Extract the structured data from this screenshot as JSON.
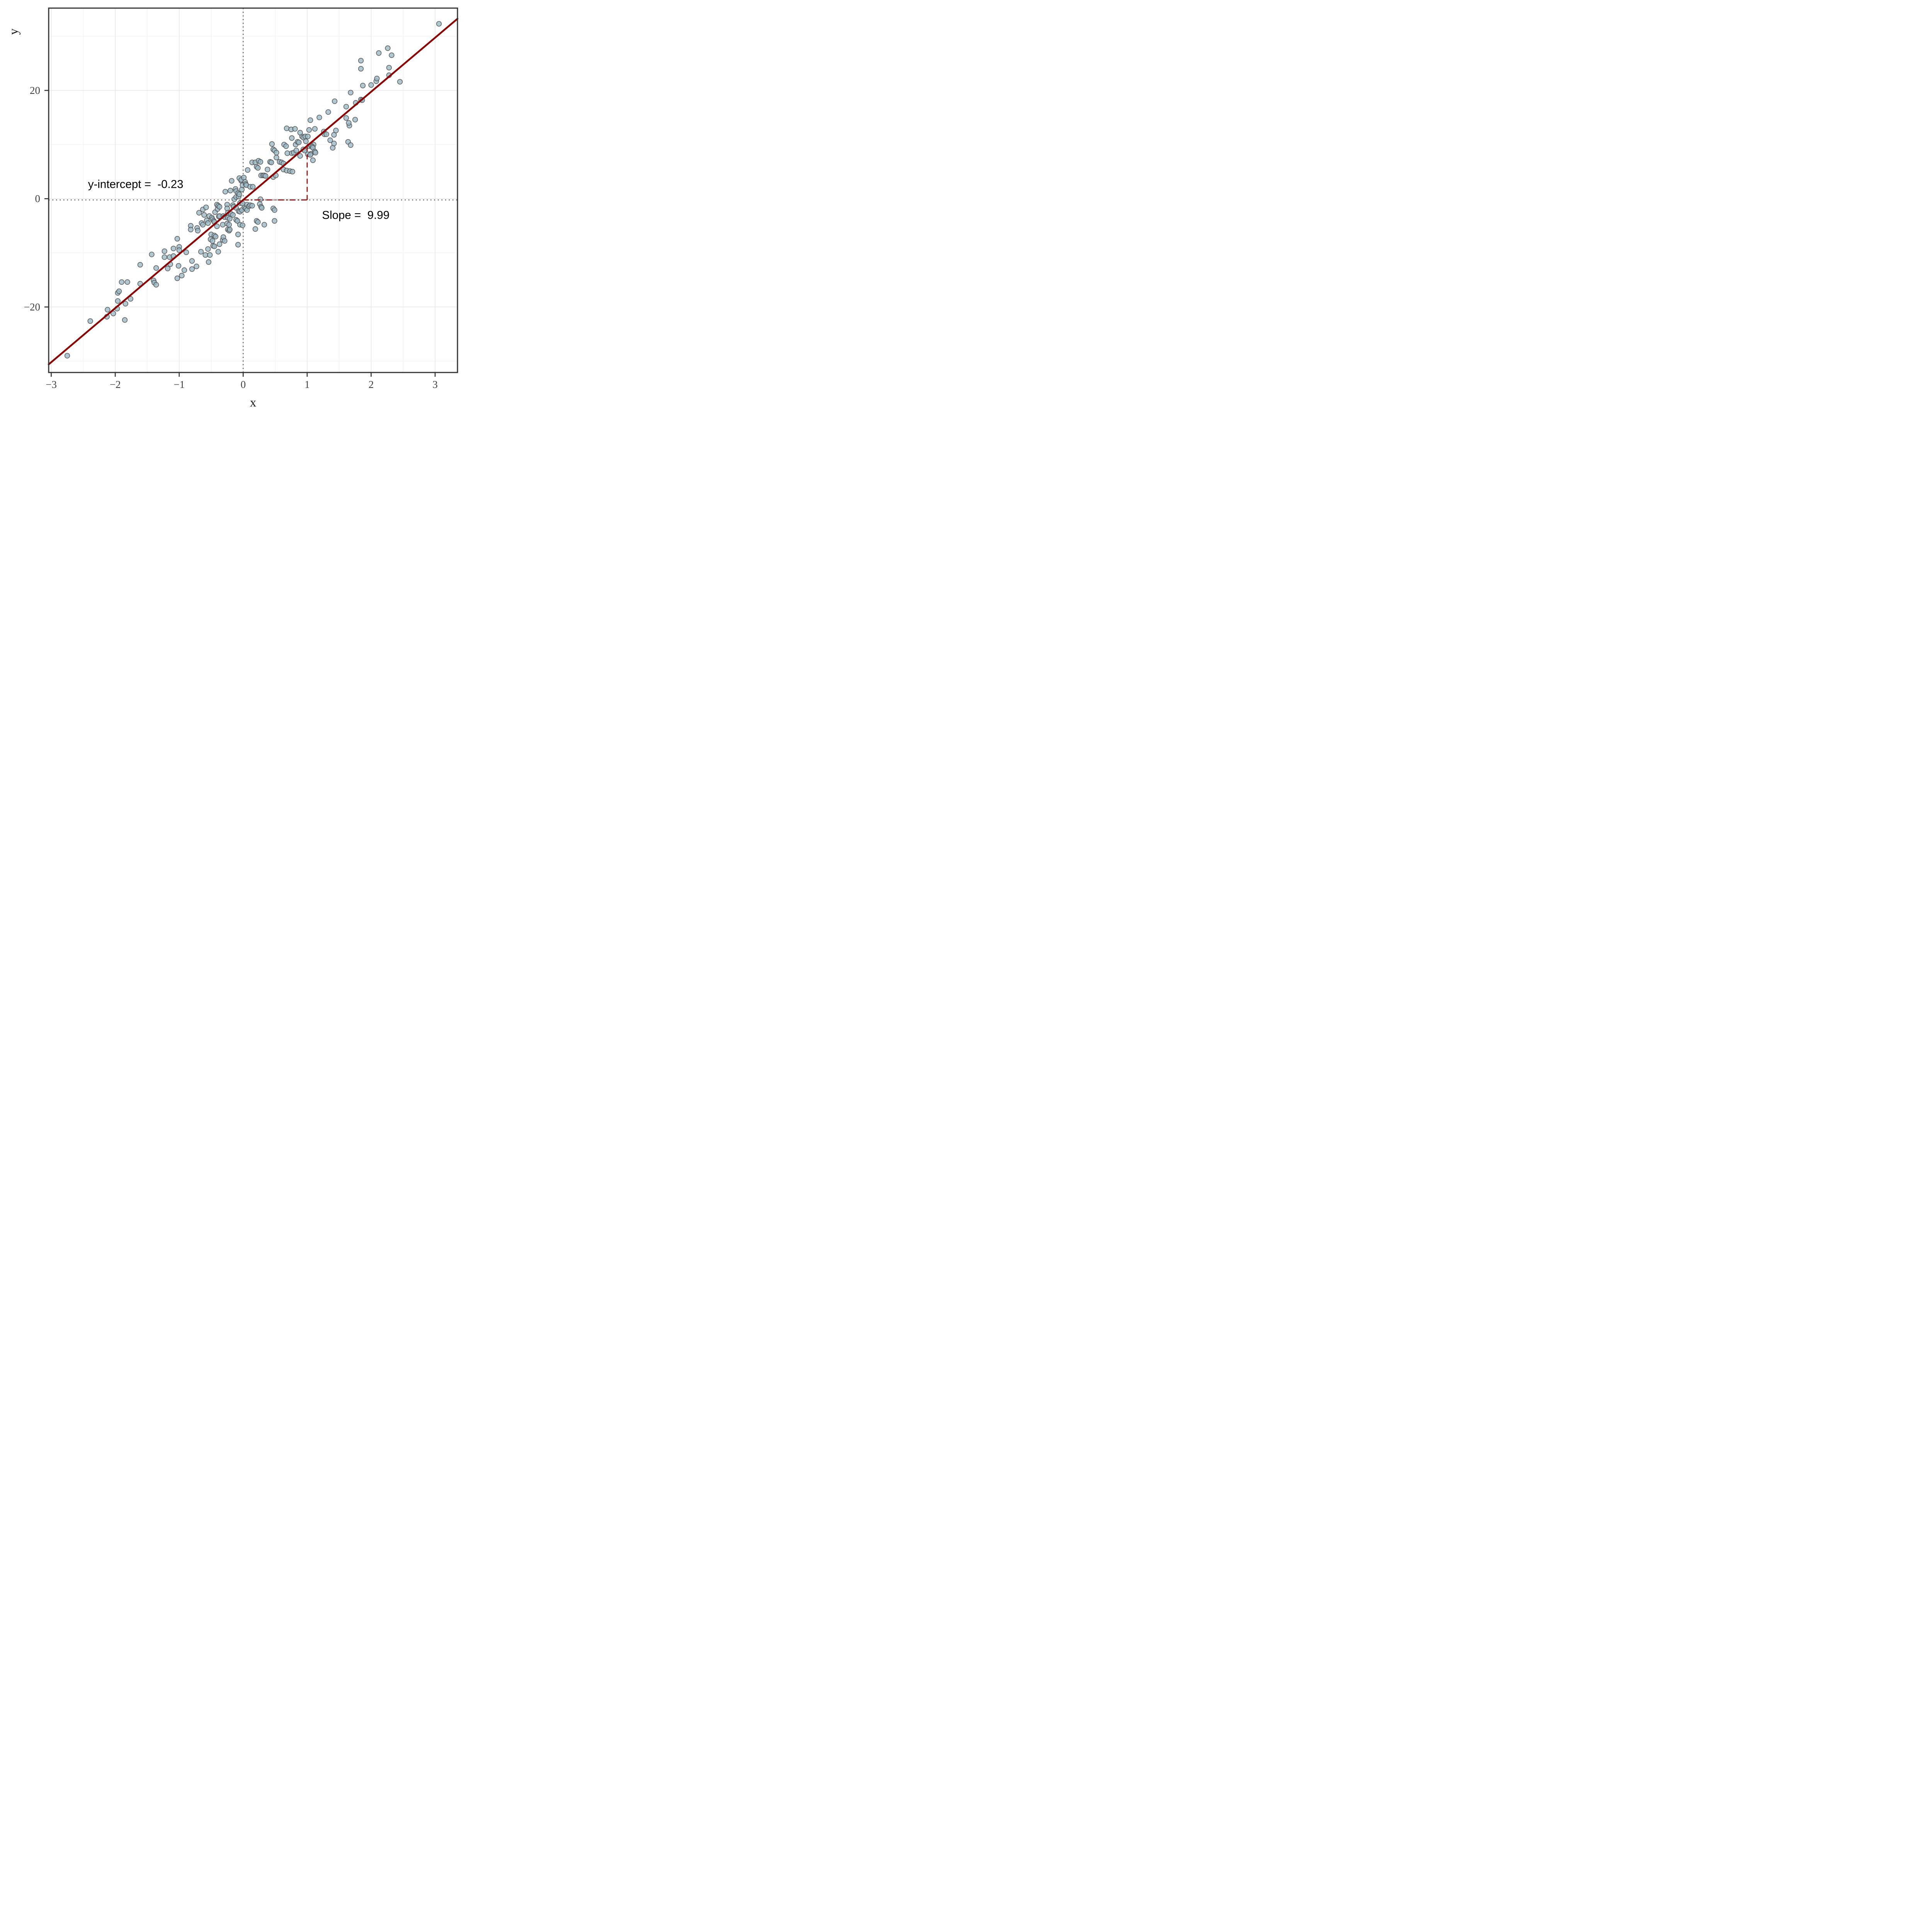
{
  "figure": {
    "xlabel": "x",
    "ylabel": "y"
  },
  "colors": {
    "regression_line": "#8B0000",
    "point_fill": "#9ab9c5",
    "point_stroke": "#4f4f4f",
    "panel_border": "#333333",
    "grid_major": "#e4e4e4",
    "grid_minor": "#efefef",
    "guide_dotted": "#3a3a3a",
    "tick_mark": "#333333",
    "tick_label": "#404040",
    "annotation_text": "#000000",
    "background": "#ffffff"
  },
  "chart_data": {
    "type": "scatter",
    "title": "",
    "xlabel": "x",
    "ylabel": "y",
    "xlim": [
      -3.04,
      3.35
    ],
    "ylim": [
      -32.1,
      35.2
    ],
    "grid": "on",
    "legend": "none",
    "x_ticks": [
      -3,
      -2,
      -1,
      0,
      1,
      2,
      3
    ],
    "x_tick_labels": [
      "−3",
      "−2",
      "−1",
      "0",
      "1",
      "2",
      "3"
    ],
    "y_ticks": [
      20,
      0,
      -20
    ],
    "y_tick_labels": [
      "20",
      "0",
      "−20"
    ],
    "x_minor_ticks": [
      -2.5,
      -1.5,
      -0.5,
      0.5,
      1.5,
      2.5
    ],
    "y_minor_ticks": [
      -30,
      -10,
      10,
      30
    ],
    "regression": {
      "slope": 9.99,
      "intercept": -0.23
    },
    "guide_lines": {
      "vline_x": 0,
      "hline_y": -0.23
    },
    "slope_triangle": {
      "x_from": 0,
      "x_to": 1,
      "base_y": -0.23
    },
    "annotations": [
      {
        "id": "intercept-annotation",
        "text": "y-intercept =  -0.23",
        "x": -1.68,
        "y": 2.7
      },
      {
        "id": "slope-annotation",
        "text": "Slope =  9.99",
        "x": 1.76,
        "y": -3.0
      }
    ],
    "points": [
      [
        -2.75,
        -29.0
      ],
      [
        -2.39,
        -22.6
      ],
      [
        -2.13,
        -21.8
      ],
      [
        -2.12,
        -20.5
      ],
      [
        -2.03,
        -21.2
      ],
      [
        -1.97,
        -20.3
      ],
      [
        -1.96,
        -18.9
      ],
      [
        -1.96,
        -17.4
      ],
      [
        -1.94,
        -17.1
      ],
      [
        -1.9,
        -15.4
      ],
      [
        -1.85,
        -22.4
      ],
      [
        -1.84,
        -19.4
      ],
      [
        -1.81,
        -15.4
      ],
      [
        -1.76,
        -18.5
      ],
      [
        -1.61,
        -15.7
      ],
      [
        -1.61,
        -12.2
      ],
      [
        -1.43,
        -10.3
      ],
      [
        -1.4,
        -15.1
      ],
      [
        -1.39,
        -15.5
      ],
      [
        -1.36,
        -15.9
      ],
      [
        -1.36,
        -12.8
      ],
      [
        -1.23,
        -9.7
      ],
      [
        -1.23,
        -10.8
      ],
      [
        -1.18,
        -12.9
      ],
      [
        -1.15,
        -10.8
      ],
      [
        -1.14,
        -12.1
      ],
      [
        -1.09,
        -9.2
      ],
      [
        -1.09,
        -10.6
      ],
      [
        -1.03,
        -14.7
      ],
      [
        -1.03,
        -7.4
      ],
      [
        -1.01,
        -12.4
      ],
      [
        -1.0,
        -8.9
      ],
      [
        -1.0,
        -9.5
      ],
      [
        -0.96,
        -14.2
      ],
      [
        -0.92,
        -13.2
      ],
      [
        -0.89,
        -9.9
      ],
      [
        -0.8,
        -11.5
      ],
      [
        -0.8,
        -13.0
      ],
      [
        -0.82,
        -5.0
      ],
      [
        -0.82,
        -5.7
      ],
      [
        -0.73,
        -12.5
      ],
      [
        -0.72,
        -5.4
      ],
      [
        -0.71,
        -5.9
      ],
      [
        -0.69,
        -2.6
      ],
      [
        -0.66,
        -9.8
      ],
      [
        -0.65,
        -4.5
      ],
      [
        -0.63,
        -2.0
      ],
      [
        -0.63,
        -4.8
      ],
      [
        -0.61,
        -3.0
      ],
      [
        -0.59,
        -10.4
      ],
      [
        -0.58,
        -1.6
      ],
      [
        -0.57,
        -4.0
      ],
      [
        -0.55,
        -4.5
      ],
      [
        -0.55,
        -9.3
      ],
      [
        -0.53,
        -3.2
      ],
      [
        -0.5,
        -6.6
      ],
      [
        -0.54,
        -11.7
      ],
      [
        -0.52,
        -10.4
      ],
      [
        -0.51,
        -7.5
      ],
      [
        -0.49,
        -3.5
      ],
      [
        -0.48,
        -3.8
      ],
      [
        -0.48,
        -7.8
      ],
      [
        -0.47,
        -8.7
      ],
      [
        -0.46,
        -4.1
      ],
      [
        -0.45,
        -4.3
      ],
      [
        -0.45,
        -6.8
      ],
      [
        -0.45,
        -8.8
      ],
      [
        -0.44,
        -2.5
      ],
      [
        -0.43,
        -7.0
      ],
      [
        -0.41,
        -1.1
      ],
      [
        -0.41,
        -5.1
      ],
      [
        -0.4,
        -1.9
      ],
      [
        -0.39,
        -1.3
      ],
      [
        -0.39,
        -9.8
      ],
      [
        -0.38,
        -3.3
      ],
      [
        -0.37,
        -1.5
      ],
      [
        -0.37,
        -3.2
      ],
      [
        -0.37,
        -8.4
      ],
      [
        -0.32,
        -4.8
      ],
      [
        -0.32,
        -7.6
      ],
      [
        -0.31,
        -3.2
      ],
      [
        -0.31,
        -7.1
      ],
      [
        -0.29,
        -3.4
      ],
      [
        -0.29,
        -7.8
      ],
      [
        -0.25,
        -1.1
      ],
      [
        -0.25,
        -1.8
      ],
      [
        -0.25,
        -4.6
      ],
      [
        -0.24,
        -2.6
      ],
      [
        -0.24,
        -3.5
      ],
      [
        -0.24,
        -5.7
      ],
      [
        -0.22,
        -4.8
      ],
      [
        -0.22,
        -5.9
      ],
      [
        -0.21,
        -3.7
      ],
      [
        -0.21,
        -5.7
      ],
      [
        -0.19,
        -2.8
      ],
      [
        -0.16,
        -1.2
      ],
      [
        -0.16,
        -3.0
      ],
      [
        -0.15,
        -1.5
      ],
      [
        -0.11,
        -1.7
      ],
      [
        -0.11,
        -3.9
      ],
      [
        -0.09,
        -4.1
      ],
      [
        -0.08,
        -6.6
      ],
      [
        -0.08,
        -8.5
      ],
      [
        -0.07,
        -2.3
      ],
      [
        -0.05,
        -0.8
      ],
      [
        -0.05,
        -2.4
      ],
      [
        -0.05,
        -4.8
      ],
      [
        -0.02,
        -2.1
      ],
      [
        -0.01,
        -0.9
      ],
      [
        -0.01,
        -4.9
      ],
      [
        0.02,
        -1.6
      ],
      [
        0.04,
        -1.8
      ],
      [
        0.06,
        -1.1
      ],
      [
        0.06,
        -2.1
      ],
      [
        0.09,
        -1.4
      ],
      [
        0.11,
        -1.2
      ],
      [
        0.14,
        -1.3
      ],
      [
        0.19,
        -5.6
      ],
      [
        0.21,
        -4.1
      ],
      [
        0.23,
        -4.3
      ],
      [
        0.26,
        -1.0
      ],
      [
        0.28,
        -1.5
      ],
      [
        0.29,
        -1.7
      ],
      [
        0.33,
        -4.8
      ],
      [
        0.49,
        -4.1
      ],
      [
        -0.28,
        1.3
      ],
      [
        -0.2,
        1.5
      ],
      [
        -0.18,
        3.3
      ],
      [
        -0.14,
        -0.1
      ],
      [
        -0.12,
        1.8
      ],
      [
        -0.11,
        0.3
      ],
      [
        -0.11,
        1.4
      ],
      [
        -0.08,
        1.0
      ],
      [
        -0.07,
        0.4
      ],
      [
        -0.06,
        0.8
      ],
      [
        -0.06,
        3.8
      ],
      [
        -0.03,
        3.3
      ],
      [
        -0.03,
        3.5
      ],
      [
        -0.02,
        1.7
      ],
      [
        -0.01,
        2.5
      ],
      [
        0.01,
        3.9
      ],
      [
        0.03,
        3.1
      ],
      [
        0.04,
        2.7
      ],
      [
        0.05,
        2.5
      ],
      [
        0.07,
        5.3
      ],
      [
        0.11,
        2.2
      ],
      [
        0.15,
        2.2
      ],
      [
        0.14,
        6.7
      ],
      [
        0.19,
        6.7
      ],
      [
        0.21,
        5.9
      ],
      [
        0.23,
        5.7
      ],
      [
        0.24,
        7.0
      ],
      [
        0.27,
        -0.1
      ],
      [
        0.27,
        6.8
      ],
      [
        0.28,
        4.3
      ],
      [
        0.31,
        4.3
      ],
      [
        0.33,
        4.3
      ],
      [
        0.35,
        4.2
      ],
      [
        0.38,
        5.4
      ],
      [
        0.42,
        6.8
      ],
      [
        0.44,
        6.7
      ],
      [
        0.45,
        10.1
      ],
      [
        0.47,
        -1.8
      ],
      [
        0.47,
        4.0
      ],
      [
        0.47,
        9.1
      ],
      [
        0.49,
        -2.1
      ],
      [
        0.49,
        8.9
      ],
      [
        0.51,
        4.3
      ],
      [
        0.52,
        7.6
      ],
      [
        0.52,
        8.5
      ],
      [
        0.57,
        6.8
      ],
      [
        0.6,
        6.7
      ],
      [
        0.63,
        5.4
      ],
      [
        0.63,
        6.5
      ],
      [
        0.64,
        10.0
      ],
      [
        0.67,
        9.7
      ],
      [
        0.68,
        5.2
      ],
      [
        0.69,
        8.4
      ],
      [
        0.73,
        5.1
      ],
      [
        0.76,
        8.4
      ],
      [
        0.76,
        11.2
      ],
      [
        0.77,
        5.0
      ],
      [
        0.79,
        8.5
      ],
      [
        0.82,
        10.0
      ],
      [
        0.83,
        8.9
      ],
      [
        0.85,
        10.5
      ],
      [
        0.87,
        10.4
      ],
      [
        0.89,
        7.9
      ],
      [
        0.92,
        11.5
      ],
      [
        0.94,
        9.1
      ],
      [
        0.94,
        11.3
      ],
      [
        0.96,
        8.9
      ],
      [
        0.97,
        11.5
      ],
      [
        0.98,
        10.6
      ],
      [
        1.01,
        11.5
      ],
      [
        1.03,
        9.7
      ],
      [
        1.06,
        8.3
      ],
      [
        1.1,
        10.0
      ],
      [
        0.68,
        13.0
      ],
      [
        0.75,
        12.8
      ],
      [
        0.81,
        12.9
      ],
      [
        0.89,
        12.2
      ],
      [
        1.4,
        9.4
      ],
      [
        1.45,
        12.6
      ],
      [
        1.64,
        10.5
      ],
      [
        1.66,
        13.5
      ],
      [
        1.68,
        9.9
      ],
      [
        1.01,
        8.2
      ],
      [
        1.03,
        12.7
      ],
      [
        1.05,
        8.1
      ],
      [
        1.05,
        14.5
      ],
      [
        1.06,
        9.8
      ],
      [
        1.08,
        9.6
      ],
      [
        1.09,
        7.1
      ],
      [
        1.09,
        9.4
      ],
      [
        1.12,
        8.7
      ],
      [
        1.12,
        12.9
      ],
      [
        1.13,
        8.5
      ],
      [
        1.19,
        15.0
      ],
      [
        1.26,
        12.4
      ],
      [
        1.27,
        11.9
      ],
      [
        1.3,
        11.9
      ],
      [
        1.33,
        16.0
      ],
      [
        1.36,
        10.8
      ],
      [
        1.42,
        10.2
      ],
      [
        1.42,
        11.8
      ],
      [
        1.43,
        18.0
      ],
      [
        1.61,
        14.9
      ],
      [
        1.61,
        17.0
      ],
      [
        1.65,
        14.0
      ],
      [
        1.68,
        19.6
      ],
      [
        1.75,
        14.6
      ],
      [
        1.76,
        17.7
      ],
      [
        1.84,
        18.3
      ],
      [
        1.86,
        18.2
      ],
      [
        1.87,
        20.9
      ],
      [
        2.0,
        21.0
      ],
      [
        2.08,
        21.7
      ],
      [
        2.09,
        22.2
      ],
      [
        1.84,
        24.0
      ],
      [
        1.84,
        25.5
      ],
      [
        2.12,
        26.9
      ],
      [
        2.26,
        27.8
      ],
      [
        2.28,
        22.8
      ],
      [
        2.28,
        24.2
      ],
      [
        2.32,
        26.5
      ],
      [
        2.45,
        21.6
      ],
      [
        3.06,
        32.3
      ]
    ]
  }
}
